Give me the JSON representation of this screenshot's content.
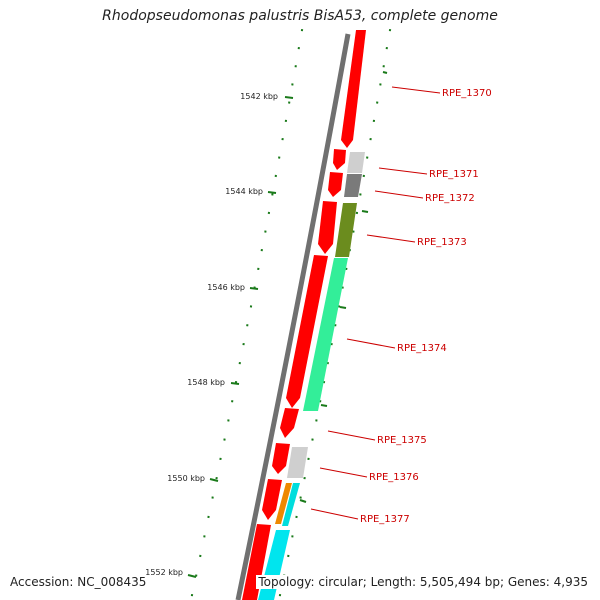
{
  "title": "Rhodopseudomonas palustris BisA53, complete genome",
  "footer": {
    "accession": "Accession: NC_008435",
    "summary": "Topology: circular; Length: 5,505,494 bp; Genes: 4,935"
  },
  "tick_labels": [
    "1542 kbp",
    "1544 kbp",
    "1546 kbp",
    "1548 kbp",
    "1550 kbp",
    "1552 kbp"
  ],
  "colors": {
    "backbone": "#707070",
    "cds_forward": "#ff0000",
    "tick": "#1a7a1a",
    "label": "#cc0000"
  },
  "genes": [
    {
      "name": "RPE_1370"
    },
    {
      "name": "RPE_1371",
      "color": "#cfcfcf"
    },
    {
      "name": "RPE_1372",
      "color": "#7a7a7a"
    },
    {
      "name": "RPE_1373",
      "color": "#6b8c1e"
    },
    {
      "name": "RPE_1374",
      "color": "#33ee99"
    },
    {
      "name": "RPE_1375"
    },
    {
      "name": "RPE_1376",
      "color": "#cfcfcf"
    },
    {
      "name": "RPE_1377",
      "color": "#ee8800"
    }
  ]
}
